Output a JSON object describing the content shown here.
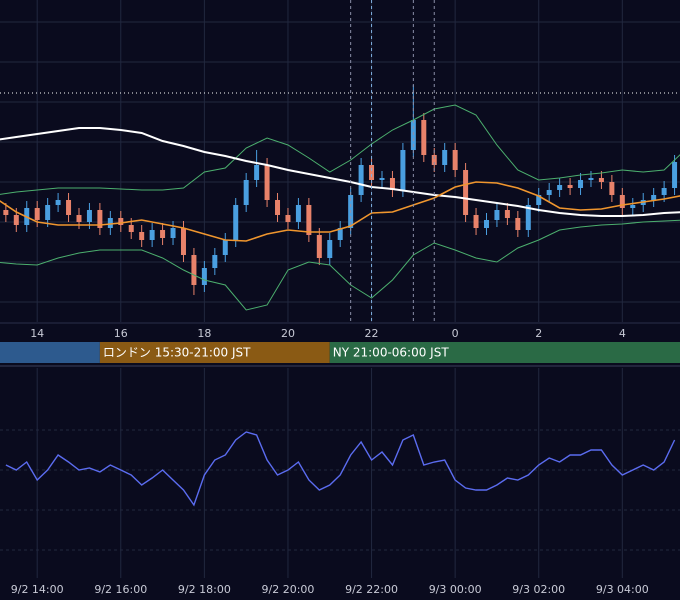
{
  "chart_data": [
    {
      "type": "candlestick",
      "xlim": [
        13.11,
        29.38
      ],
      "ylim": [
        0,
        322
      ],
      "xticks": [
        14,
        16,
        18,
        20,
        22,
        {
          "value": 24,
          "label": "0"
        },
        {
          "value": 26,
          "label": "2"
        },
        {
          "value": 28,
          "label": "4"
        }
      ],
      "ygrid": [
        20,
        60,
        100,
        140,
        180,
        220,
        260,
        300
      ],
      "candles": {
        "up_color": "#4a9fe0",
        "down_color": "#e8826a",
        "x": [
          13.25,
          13.5,
          13.75,
          14,
          14.25,
          14.5,
          14.75,
          15,
          15.25,
          15.5,
          15.75,
          16,
          16.25,
          16.5,
          16.75,
          17,
          17.25,
          17.5,
          17.75,
          18,
          18.25,
          18.5,
          18.75,
          19,
          19.25,
          19.5,
          19.75,
          20,
          20.25,
          20.5,
          20.75,
          21,
          21.25,
          21.5,
          21.75,
          22,
          22.25,
          22.5,
          22.75,
          23,
          23.25,
          23.5,
          23.75,
          24,
          24.25,
          24.5,
          24.75,
          25,
          25.25,
          25.5,
          25.75,
          26,
          26.25,
          26.5,
          26.75,
          27,
          27.25,
          27.5,
          27.75,
          28,
          28.25,
          28.5,
          28.75,
          29,
          29.25
        ],
        "open": [
          112,
          107,
          97,
          114,
          102,
          117,
          122,
          107,
          100,
          112,
          94,
          104,
          97,
          90,
          82,
          92,
          84,
          94,
          67,
          37,
          54,
          67,
          82,
          117,
          142,
          157,
          122,
          107,
          100,
          117,
          87,
          64,
          82,
          94,
          127,
          157,
          142,
          144,
          132,
          172,
          202,
          167,
          157,
          172,
          152,
          107,
          94,
          102,
          112,
          104,
          92,
          117,
          127,
          132,
          137,
          134,
          142,
          144,
          140,
          127,
          114,
          117,
          122,
          127,
          134
        ],
        "high": [
          119,
          114,
          121,
          121,
          124,
          129,
          129,
          114,
          119,
          119,
          111,
          111,
          104,
          97,
          99,
          99,
          101,
          101,
          74,
          61,
          74,
          89,
          124,
          149,
          172,
          164,
          129,
          114,
          124,
          124,
          94,
          89,
          101,
          134,
          164,
          164,
          151,
          151,
          179,
          237,
          209,
          174,
          179,
          179,
          159,
          114,
          109,
          119,
          119,
          111,
          124,
          134,
          139,
          144,
          144,
          149,
          151,
          151,
          147,
          134,
          124,
          129,
          134,
          141,
          167
        ],
        "low": [
          100,
          90,
          90,
          95,
          95,
          110,
          100,
          93,
          93,
          87,
          87,
          90,
          83,
          75,
          75,
          77,
          77,
          60,
          27,
          30,
          47,
          60,
          75,
          110,
          135,
          115,
          100,
          93,
          93,
          80,
          57,
          57,
          75,
          87,
          120,
          135,
          135,
          125,
          125,
          165,
          160,
          150,
          150,
          145,
          100,
          87,
          87,
          95,
          97,
          85,
          85,
          110,
          120,
          125,
          127,
          127,
          135,
          133,
          120,
          107,
          107,
          110,
          115,
          120,
          127
        ],
        "close": [
          107,
          97,
          114,
          102,
          117,
          122,
          107,
          100,
          112,
          94,
          104,
          97,
          90,
          82,
          92,
          84,
          94,
          67,
          37,
          54,
          67,
          82,
          117,
          142,
          157,
          122,
          107,
          100,
          117,
          87,
          64,
          82,
          94,
          127,
          157,
          142,
          144,
          132,
          172,
          202,
          167,
          157,
          172,
          152,
          107,
          94,
          102,
          112,
          104,
          92,
          117,
          127,
          132,
          137,
          134,
          142,
          144,
          140,
          127,
          114,
          117,
          122,
          127,
          134,
          160
        ]
      },
      "x": [
        13,
        13.5,
        14,
        14.5,
        15,
        15.5,
        16,
        16.5,
        17,
        17.5,
        18,
        18.5,
        19,
        19.5,
        20,
        20.5,
        21,
        21.5,
        22,
        22.5,
        23,
        23.5,
        24,
        24.5,
        25,
        25.5,
        26,
        26.5,
        27,
        27.5,
        28,
        28.5,
        29,
        29.5
      ],
      "series": [
        {
          "color": "#4caf6e",
          "values": [
            127,
            130,
            132,
            134,
            134,
            134,
            133,
            132,
            132,
            134,
            150,
            154,
            174,
            184,
            177,
            164,
            150,
            162,
            178,
            192,
            202,
            213,
            217,
            207,
            177,
            152,
            142,
            144,
            147,
            149,
            152,
            150,
            152,
            172
          ]
        },
        {
          "color": "#4caf6e",
          "values": [
            60,
            58,
            57,
            64,
            69,
            72,
            72,
            72,
            64,
            52,
            42,
            37,
            12,
            17,
            52,
            60,
            57,
            37,
            24,
            42,
            67,
            79,
            72,
            64,
            60,
            74,
            82,
            92,
            95,
            97,
            98,
            100,
            101,
            102
          ]
        },
        {
          "color": "#ffffff",
          "values": [
            182,
            185,
            188,
            191,
            194,
            194,
            192,
            189,
            181,
            176,
            170,
            166,
            161,
            157,
            152,
            148,
            144,
            140,
            135,
            133,
            130,
            127,
            125,
            122,
            119,
            116,
            112,
            109,
            107,
            106,
            106,
            107,
            109,
            110
          ]
        },
        {
          "color": "#f0962e",
          "values": [
            124,
            110,
            100,
            97,
            97,
            97,
            99,
            102,
            98,
            94,
            88,
            82,
            81,
            88,
            92,
            90,
            90,
            96,
            109,
            110,
            117,
            124,
            135,
            140,
            139,
            134,
            126,
            114,
            112,
            113,
            117,
            120,
            123,
            127
          ]
        }
      ],
      "markers": {
        "x": [
          21.5,
          22,
          23,
          23.5
        ],
        "colors": [
          "#8a8fa8",
          "#7fb0e0",
          "#8a8fa8",
          "#8a8fa8"
        ]
      },
      "hline": {
        "value": 229,
        "color": "#ffffff"
      },
      "sessions": [
        {
          "name": null,
          "start": 9,
          "end": 15.5,
          "color": "#2d5a8e"
        },
        {
          "name": "ロンドン 15:30-21:00 JST",
          "start": 15.5,
          "end": 21,
          "color": "#8a5a14"
        },
        {
          "name": "NY 21:00-06:00 JST",
          "start": 21,
          "end": 30,
          "color": "#2a6a45"
        }
      ]
    },
    {
      "type": "line",
      "xlim": [
        13.11,
        29.38
      ],
      "ylim": [
        0,
        210
      ],
      "xticks": [
        {
          "value": 14,
          "label": "9/2 14:00"
        },
        {
          "value": 16,
          "label": "9/2 16:00"
        },
        {
          "value": 18,
          "label": "9/2 18:00"
        },
        {
          "value": 20,
          "label": "9/2 20:00"
        },
        {
          "value": 22,
          "label": "9/2 22:00"
        },
        {
          "value": 24,
          "label": "9/3 00:00"
        },
        {
          "value": 26,
          "label": "9/3 02:00"
        },
        {
          "value": 28,
          "label": "9/3 04:00"
        }
      ],
      "ygrid": [
        28,
        68,
        108,
        148
      ],
      "x": [
        13.25,
        13.5,
        13.75,
        14,
        14.25,
        14.5,
        14.75,
        15,
        15.25,
        15.5,
        15.75,
        16,
        16.25,
        16.5,
        16.75,
        17,
        17.25,
        17.5,
        17.75,
        18,
        18.25,
        18.5,
        18.75,
        19,
        19.25,
        19.5,
        19.75,
        20,
        20.25,
        20.5,
        20.75,
        21,
        21.25,
        21.5,
        21.75,
        22,
        22.25,
        22.5,
        22.75,
        23,
        23.25,
        23.5,
        23.75,
        24,
        24.25,
        24.5,
        24.75,
        25,
        25.25,
        25.5,
        25.75,
        26,
        26.25,
        26.5,
        26.75,
        27,
        27.25,
        27.5,
        27.75,
        28,
        28.25,
        28.5,
        28.75,
        29,
        29.25
      ],
      "series": [
        {
          "color": "#5b6cf0",
          "values": [
            113,
            108,
            116,
            98,
            108,
            123,
            116,
            108,
            110,
            106,
            113,
            108,
            103,
            93,
            100,
            108,
            98,
            88,
            73,
            103,
            118,
            123,
            138,
            146,
            143,
            118,
            103,
            108,
            116,
            98,
            88,
            93,
            103,
            123,
            136,
            118,
            126,
            113,
            138,
            143,
            113,
            116,
            118,
            98,
            90,
            88,
            88,
            93,
            100,
            98,
            103,
            113,
            120,
            116,
            123,
            123,
            128,
            128,
            113,
            103,
            108,
            113,
            108,
            116,
            138
          ]
        }
      ]
    }
  ]
}
